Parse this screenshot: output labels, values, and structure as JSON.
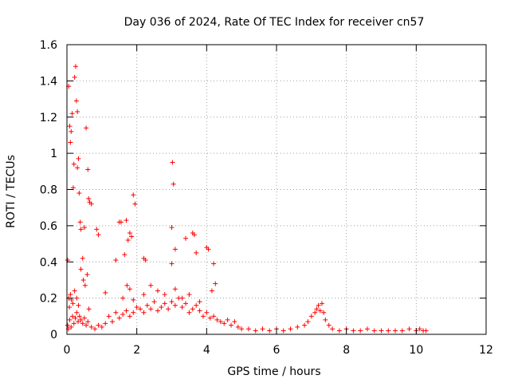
{
  "chart_data": {
    "type": "scatter",
    "title": "Day 036 of 2024, Rate Of TEC Index for receiver cn57",
    "xlabel": "GPS time / hours",
    "ylabel": "ROTI / TECUs",
    "xlim": [
      0,
      12
    ],
    "ylim": [
      0,
      1.6
    ],
    "xticks": [
      0,
      2,
      4,
      6,
      8,
      10,
      12
    ],
    "yticks": [
      0,
      0.2,
      0.4,
      0.6,
      0.8,
      1,
      1.2,
      1.4,
      1.6
    ],
    "xtick_labels": [
      "0",
      "2",
      "4",
      "6",
      "8",
      "10",
      "12"
    ],
    "ytick_labels": [
      "0",
      "0.2",
      "0.4",
      "0.6",
      "0.8",
      "1",
      "1.2",
      "1.4",
      "1.6"
    ],
    "grid": true,
    "marker": "+",
    "color": "#ff0000",
    "series": [
      {
        "x": [
          0.02,
          0.05,
          0.08,
          0.1,
          0.12,
          0.15,
          0.18,
          0.2,
          0.22,
          0.25,
          0.27,
          0.3,
          0.3,
          0.33,
          0.35,
          0.38,
          0.4,
          0.45,
          0.5,
          0.55,
          0.6,
          0.62,
          0.65,
          0.7,
          0.85,
          0.9,
          1.1,
          1.4,
          1.5,
          1.55,
          1.65,
          1.7,
          1.75,
          1.8,
          1.85,
          1.9,
          1.95,
          2.2,
          2.25,
          3.0,
          3.02,
          3.05,
          3.1,
          3.0,
          3.4,
          3.6,
          3.65,
          3.7,
          4.0,
          4.05,
          4.2,
          4.25,
          0.05,
          0.07,
          0.1,
          0.13,
          0.17,
          0.22,
          0.28,
          0.33,
          0.4,
          0.47,
          0.52,
          0.58,
          0.63,
          1.6,
          1.72,
          1.8,
          1.9,
          2.2,
          2.4,
          2.6,
          2.8,
          3.1,
          3.3,
          3.5,
          3.8,
          4.15,
          0.02,
          0.04,
          0.08,
          0.12,
          0.16,
          0.2,
          0.24,
          0.28,
          0.32,
          0.36,
          0.4,
          0.45,
          0.5,
          0.55,
          0.6,
          0.7,
          0.8,
          0.9,
          1.0,
          1.1,
          1.2,
          1.3,
          1.4,
          1.5,
          1.6,
          1.7,
          1.8,
          1.9,
          2.0,
          2.1,
          2.2,
          2.3,
          2.4,
          2.5,
          2.6,
          2.7,
          2.8,
          2.9,
          3.0,
          3.1,
          3.2,
          3.3,
          3.4,
          3.5,
          3.6,
          3.7,
          3.8,
          3.9,
          4.0,
          4.1,
          4.2,
          4.3,
          4.4,
          4.5,
          4.6,
          4.7,
          4.8,
          4.9,
          5.0,
          5.2,
          5.4,
          5.6,
          5.8,
          6.0,
          6.2,
          6.4,
          6.6,
          6.8,
          6.9,
          7.0,
          7.1,
          7.15,
          7.2,
          7.25,
          7.3,
          7.35,
          7.4,
          7.5,
          7.6,
          7.8,
          8.0,
          8.2,
          8.4,
          8.6,
          8.8,
          9.0,
          9.2,
          9.4,
          9.6,
          9.8,
          10.0,
          10.1,
          10.2,
          10.28
        ],
        "y": [
          0.41,
          1.37,
          1.15,
          1.06,
          1.12,
          1.22,
          0.81,
          0.94,
          1.42,
          1.48,
          1.29,
          1.23,
          0.92,
          0.97,
          0.78,
          0.62,
          0.58,
          0.42,
          0.59,
          1.14,
          0.91,
          0.75,
          0.73,
          0.72,
          0.58,
          0.55,
          0.23,
          0.41,
          0.62,
          0.62,
          0.44,
          0.63,
          0.52,
          0.56,
          0.54,
          0.77,
          0.72,
          0.42,
          0.41,
          0.59,
          0.95,
          0.83,
          0.47,
          0.39,
          0.53,
          0.56,
          0.55,
          0.45,
          0.48,
          0.47,
          0.39,
          0.28,
          0.2,
          0.15,
          0.22,
          0.19,
          0.17,
          0.24,
          0.2,
          0.16,
          0.36,
          0.3,
          0.27,
          0.33,
          0.14,
          0.2,
          0.27,
          0.25,
          0.19,
          0.22,
          0.27,
          0.24,
          0.22,
          0.25,
          0.2,
          0.22,
          0.18,
          0.24,
          0.05,
          0.03,
          0.08,
          0.04,
          0.1,
          0.06,
          0.09,
          0.12,
          0.07,
          0.1,
          0.08,
          0.06,
          0.09,
          0.05,
          0.07,
          0.04,
          0.03,
          0.05,
          0.04,
          0.06,
          0.1,
          0.07,
          0.12,
          0.09,
          0.11,
          0.13,
          0.1,
          0.12,
          0.15,
          0.14,
          0.12,
          0.16,
          0.14,
          0.18,
          0.13,
          0.15,
          0.17,
          0.14,
          0.18,
          0.16,
          0.2,
          0.15,
          0.17,
          0.12,
          0.14,
          0.16,
          0.13,
          0.1,
          0.12,
          0.09,
          0.1,
          0.08,
          0.07,
          0.06,
          0.08,
          0.05,
          0.07,
          0.04,
          0.03,
          0.03,
          0.02,
          0.03,
          0.02,
          0.03,
          0.02,
          0.03,
          0.04,
          0.05,
          0.07,
          0.1,
          0.12,
          0.14,
          0.16,
          0.13,
          0.17,
          0.12,
          0.08,
          0.05,
          0.03,
          0.02,
          0.03,
          0.02,
          0.02,
          0.03,
          0.02,
          0.02,
          0.02,
          0.02,
          0.02,
          0.03,
          0.02,
          0.03,
          0.02,
          0.02
        ]
      }
    ]
  }
}
